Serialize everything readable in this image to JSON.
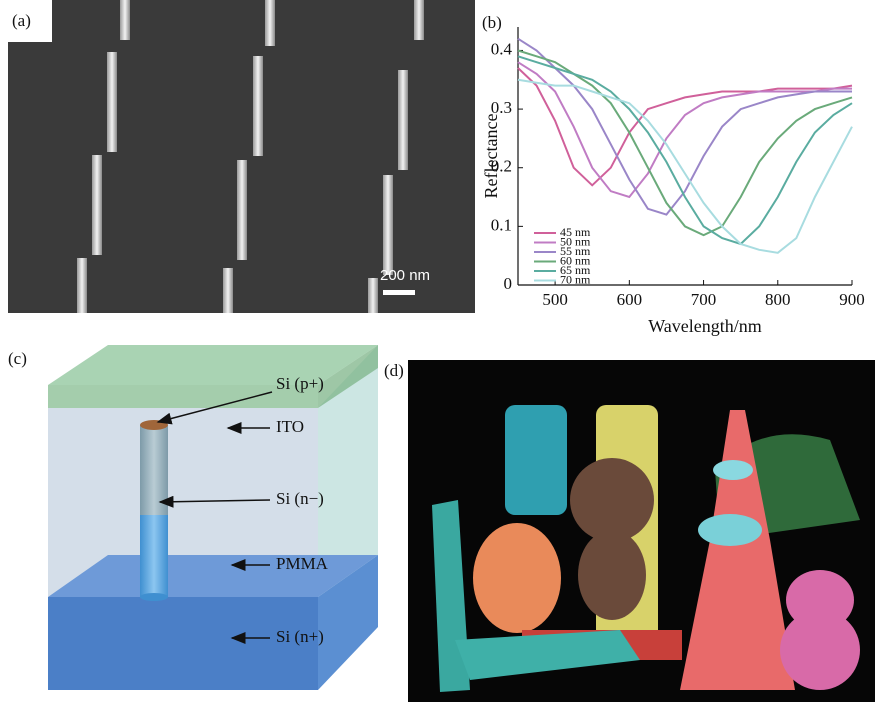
{
  "panel_labels": [
    "(a)",
    "(b)",
    "(c)",
    "(d)"
  ],
  "sem": {
    "scale_bar": "200 nm"
  },
  "diagram": {
    "labels": [
      "Si (p+)",
      "ITO",
      "Si (n−)",
      "PMMA",
      "Si (n+)"
    ]
  },
  "chart_data": {
    "type": "line",
    "xlabel": "Wavelength/nm",
    "ylabel": "Reflectance",
    "x": [
      450,
      475,
      500,
      525,
      550,
      575,
      600,
      625,
      650,
      675,
      700,
      725,
      750,
      775,
      800,
      825,
      850,
      875,
      900
    ],
    "xlim": [
      450,
      900
    ],
    "ylim": [
      0,
      0.44
    ],
    "xticks": [
      500,
      600,
      700,
      800,
      900
    ],
    "yticks": [
      0,
      0.1,
      0.2,
      0.3,
      0.4
    ],
    "series": [
      {
        "name": "45 nm",
        "color": "#d0609a",
        "values": [
          0.37,
          0.34,
          0.28,
          0.2,
          0.17,
          0.2,
          0.26,
          0.3,
          0.31,
          0.32,
          0.325,
          0.33,
          0.33,
          0.33,
          0.335,
          0.335,
          0.335,
          0.335,
          0.34
        ]
      },
      {
        "name": "50 nm",
        "color": "#c07cc4",
        "values": [
          0.38,
          0.36,
          0.33,
          0.27,
          0.2,
          0.16,
          0.15,
          0.19,
          0.25,
          0.29,
          0.31,
          0.32,
          0.325,
          0.33,
          0.33,
          0.33,
          0.33,
          0.335,
          0.335
        ]
      },
      {
        "name": "55 nm",
        "color": "#9a86c8",
        "values": [
          0.42,
          0.4,
          0.37,
          0.34,
          0.3,
          0.24,
          0.18,
          0.13,
          0.12,
          0.16,
          0.22,
          0.27,
          0.3,
          0.31,
          0.32,
          0.325,
          0.33,
          0.33,
          0.33
        ]
      },
      {
        "name": "60 nm",
        "color": "#6aaa7a",
        "values": [
          0.4,
          0.39,
          0.38,
          0.36,
          0.34,
          0.31,
          0.26,
          0.2,
          0.14,
          0.1,
          0.085,
          0.1,
          0.15,
          0.21,
          0.25,
          0.28,
          0.3,
          0.31,
          0.32
        ]
      },
      {
        "name": "65 nm",
        "color": "#5aaca0",
        "values": [
          0.39,
          0.38,
          0.37,
          0.36,
          0.35,
          0.33,
          0.3,
          0.26,
          0.21,
          0.15,
          0.1,
          0.08,
          0.07,
          0.1,
          0.15,
          0.21,
          0.26,
          0.29,
          0.31
        ]
      },
      {
        "name": "70 nm",
        "color": "#a8dce0",
        "values": [
          0.35,
          0.345,
          0.34,
          0.34,
          0.33,
          0.32,
          0.31,
          0.28,
          0.24,
          0.19,
          0.14,
          0.1,
          0.07,
          0.06,
          0.055,
          0.08,
          0.15,
          0.21,
          0.27
        ]
      }
    ]
  }
}
